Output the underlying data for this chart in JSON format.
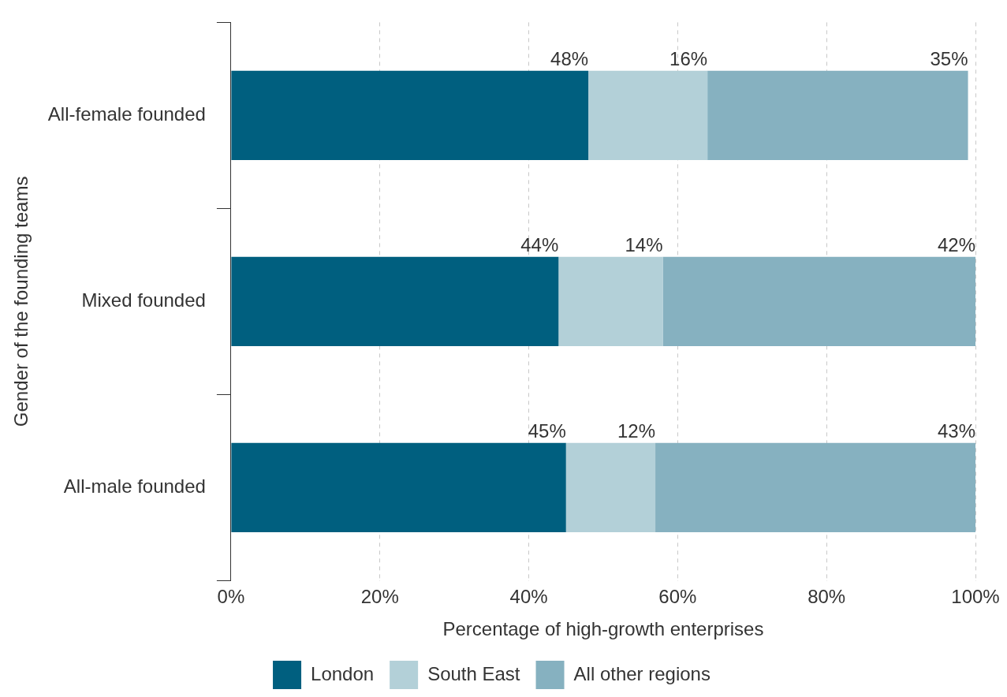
{
  "chart_data": {
    "type": "bar",
    "orientation": "horizontal",
    "stacked": true,
    "ylabel": "Gender of the founding teams",
    "xlabel": "Percentage of high-growth enterprises",
    "categories": [
      "All-female founded",
      "Mixed founded",
      "All-male founded"
    ],
    "series": [
      {
        "name": "London",
        "color": "#005f7f",
        "values": [
          48,
          44,
          45
        ],
        "value_labels": [
          "48%",
          "44%",
          "45%"
        ]
      },
      {
        "name": "South East",
        "color": "#b3d0d8",
        "values": [
          16,
          14,
          12
        ],
        "value_labels": [
          "16%",
          "14%",
          "12%"
        ]
      },
      {
        "name": "All other regions",
        "color": "#86b1c0",
        "values": [
          35,
          42,
          43
        ],
        "value_labels": [
          "35%",
          "42%",
          "43%"
        ]
      }
    ],
    "xlim": [
      0,
      100
    ],
    "xticks": [
      {
        "value": 0,
        "label": "0%"
      },
      {
        "value": 20,
        "label": "20%"
      },
      {
        "value": 40,
        "label": "40%"
      },
      {
        "value": 60,
        "label": "60%"
      },
      {
        "value": 80,
        "label": "80%"
      },
      {
        "value": 100,
        "label": "100%"
      }
    ],
    "grid": "x",
    "legend": "bottom"
  }
}
